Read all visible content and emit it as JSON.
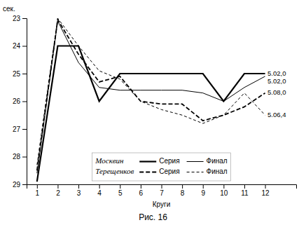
{
  "chart_data": {
    "type": "line",
    "title": "Рис. 16",
    "x_label": "Круги",
    "y_label": "сек.",
    "x": [
      1,
      2,
      3,
      4,
      5,
      6,
      7,
      8,
      9,
      10,
      11,
      12
    ],
    "series": [
      {
        "name": "Серия",
        "group": "Москвин",
        "color": "#000000",
        "line_style": "solid",
        "values": [
          28.9,
          24.0,
          24.0,
          26.0,
          25.0,
          25.0,
          25.0,
          25.0,
          25.0,
          26.0,
          25.0,
          25.0
        ]
      },
      {
        "name": "Финал",
        "group": "Москвин",
        "color": "#000000",
        "line_style": "solid",
        "values": [
          28.6,
          23.1,
          24.6,
          25.5,
          25.6,
          25.6,
          25.6,
          25.6,
          25.7,
          26.0,
          25.5,
          25.1
        ]
      },
      {
        "name": "Серия",
        "group": "Терещенков",
        "color": "#000000",
        "line_style": "dashed",
        "values": [
          28.5,
          23.05,
          24.3,
          25.3,
          25.1,
          26.0,
          26.1,
          26.1,
          26.7,
          26.5,
          26.2,
          25.7
        ]
      },
      {
        "name": "Финал",
        "group": "Терещенков",
        "color": "#000000",
        "line_style": "dashed",
        "values": [
          28.3,
          23.0,
          24.0,
          24.9,
          25.2,
          26.0,
          26.3,
          26.5,
          26.8,
          26.5,
          25.7,
          26.5
        ]
      }
    ],
    "xlim": [
      0.5,
      13.5
    ],
    "ylim": [
      29.0,
      23.0
    ],
    "xticks": [
      1,
      2,
      3,
      4,
      5,
      6,
      7,
      8,
      9,
      10,
      11,
      12
    ],
    "yticks": [
      23,
      24,
      25,
      26,
      27,
      28,
      29
    ],
    "annotations": [
      {
        "text": "5.02,0",
        "x": 12.05,
        "y": 25.0
      },
      {
        "text": "5.02,0",
        "x": 12.05,
        "y": 25.1
      },
      {
        "text": "5.08,0",
        "x": 12.05,
        "y": 25.7
      },
      {
        "text": "5.06,4",
        "x": 12.05,
        "y": 26.5
      }
    ],
    "legend": "lower center",
    "grid": false
  }
}
